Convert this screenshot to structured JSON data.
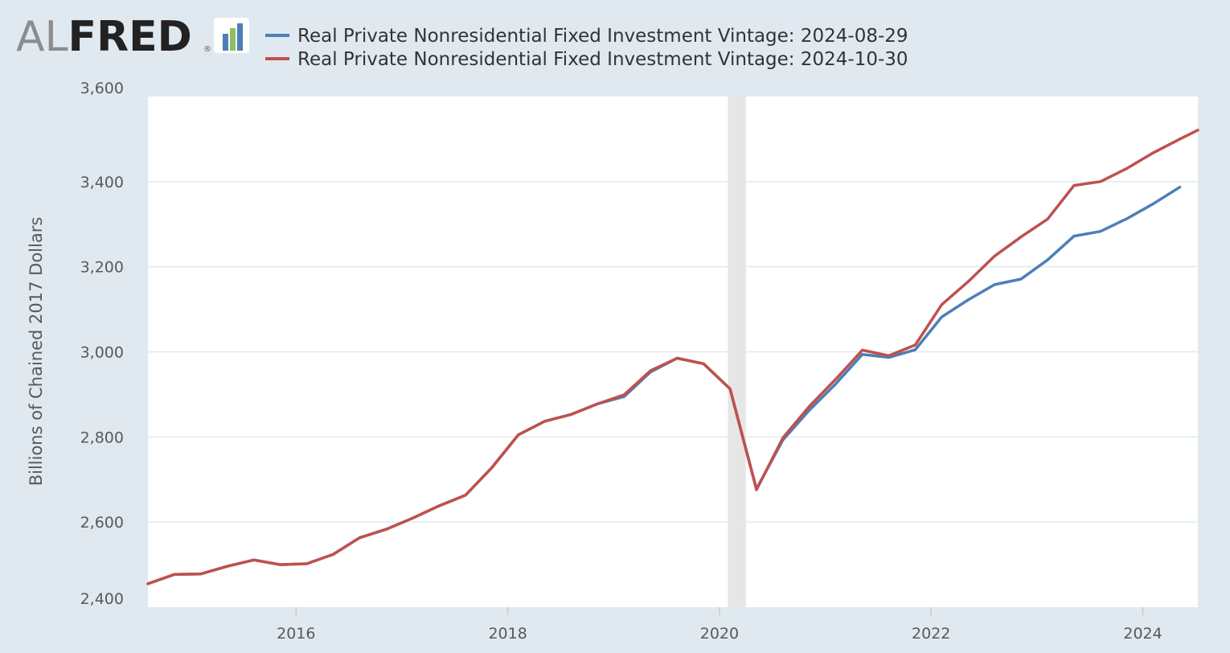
{
  "logo": {
    "part1": "AL",
    "part2": "FRED",
    "registered": "®",
    "icon": "bar-chart-icon"
  },
  "colors": {
    "background": "#e1e9f0",
    "plot_background": "#ffffff",
    "gridline": "#e1e9f0",
    "recession": "#e6e6e6",
    "series_1": "#4b7fb8",
    "series_2": "#c0504d",
    "logo_al": "#8c8c8c",
    "logo_fred": "#222222"
  },
  "chart_data": {
    "type": "line",
    "title": "",
    "xlabel": "",
    "ylabel": "Billions of Chained 2017 Dollars",
    "ylim": [
      2400,
      3600
    ],
    "xlim": [
      2014.6,
      2024.52
    ],
    "yticks": [
      2400,
      2600,
      2800,
      3000,
      3200,
      3400,
      3600
    ],
    "ytick_labels": [
      "2,400",
      "2,600",
      "2,800",
      "3,000",
      "3,200",
      "3,400",
      "3,600"
    ],
    "xticks": [
      2016,
      2018,
      2020,
      2022,
      2024
    ],
    "xtick_labels": [
      "2016",
      "2018",
      "2020",
      "2022",
      "2024"
    ],
    "grid": true,
    "legend_position": "top",
    "recession_shading": [
      [
        2020.08,
        2020.25
      ]
    ],
    "series": [
      {
        "name": "Real Private Nonresidential Fixed Investment Vintage: 2024-08-29",
        "color": "#4b7fb8",
        "x": [
          2014.6,
          2014.85,
          2015.1,
          2015.35,
          2015.6,
          2015.85,
          2016.1,
          2016.35,
          2016.6,
          2016.85,
          2017.1,
          2017.35,
          2017.6,
          2017.85,
          2018.1,
          2018.35,
          2018.6,
          2018.85,
          2019.1,
          2019.35,
          2019.6,
          2019.85,
          2020.1,
          2020.35,
          2020.6,
          2020.85,
          2021.1,
          2021.35,
          2021.6,
          2021.85,
          2022.1,
          2022.35,
          2022.6,
          2022.85,
          2023.1,
          2023.35,
          2023.6,
          2023.85,
          2024.1,
          2024.35
        ],
        "values": [
          2455,
          2477,
          2478,
          2496,
          2511,
          2500,
          2502,
          2524,
          2563,
          2583,
          2609,
          2638,
          2663,
          2728,
          2805,
          2837,
          2853,
          2878,
          2895,
          2953,
          2985,
          2972,
          2913,
          2678,
          2793,
          2863,
          2925,
          2994,
          2987,
          3005,
          3082,
          3122,
          3158,
          3171,
          3216,
          3272,
          3283,
          3313,
          3348,
          3387
        ]
      },
      {
        "name": "Real Private Nonresidential Fixed Investment Vintage: 2024-10-30",
        "color": "#c0504d",
        "x": [
          2014.6,
          2014.85,
          2015.1,
          2015.35,
          2015.6,
          2015.85,
          2016.1,
          2016.35,
          2016.6,
          2016.85,
          2017.1,
          2017.35,
          2017.6,
          2017.85,
          2018.1,
          2018.35,
          2018.6,
          2018.85,
          2019.1,
          2019.35,
          2019.6,
          2019.85,
          2020.1,
          2020.35,
          2020.6,
          2020.85,
          2021.1,
          2021.35,
          2021.6,
          2021.85,
          2022.1,
          2022.35,
          2022.6,
          2022.85,
          2023.1,
          2023.35,
          2023.6,
          2023.85,
          2024.1,
          2024.35,
          2024.52
        ],
        "values": [
          2455,
          2477,
          2478,
          2496,
          2511,
          2500,
          2502,
          2524,
          2563,
          2583,
          2609,
          2638,
          2663,
          2728,
          2805,
          2837,
          2853,
          2878,
          2899,
          2956,
          2985,
          2972,
          2913,
          2676,
          2798,
          2872,
          2936,
          3004,
          2991,
          3016,
          3111,
          3165,
          3225,
          3270,
          3312,
          3391,
          3400,
          3431,
          3468,
          3500,
          3521
        ]
      }
    ]
  }
}
